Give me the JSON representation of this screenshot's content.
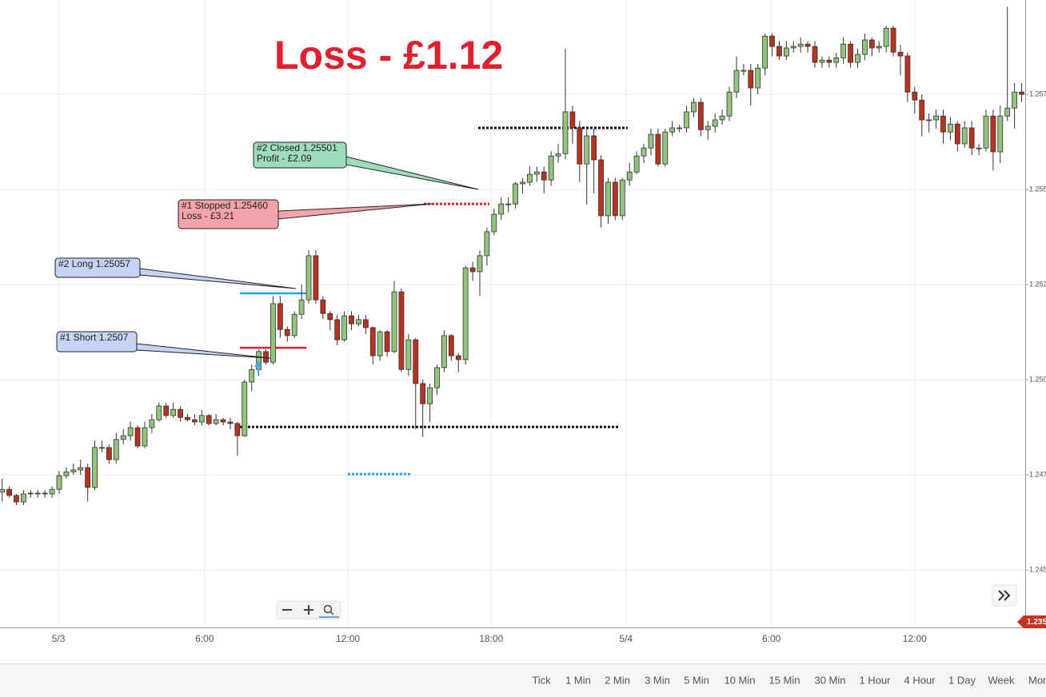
{
  "chart_data": {
    "type": "candlestick",
    "title": "Loss - £1.12",
    "title_color": "#e0202e",
    "up_color": "#93c47d",
    "down_color": "#b83221",
    "grid": true,
    "xlim": [
      -0.3,
      143.5
    ],
    "ylim": [
      1.24349,
      1.25998
    ],
    "xticks": [
      {
        "value": 7.9,
        "label": "5/3"
      },
      {
        "value": 28.4,
        "label": "6:00"
      },
      {
        "value": 48.5,
        "label": "12:00"
      },
      {
        "value": 68.6,
        "label": "18:00"
      },
      {
        "value": 87.5,
        "label": "5/4"
      },
      {
        "value": 107.9,
        "label": "6:00"
      },
      {
        "value": 128.0,
        "label": "12:00"
      }
    ],
    "yticks": [
      {
        "value": 1.2575,
        "label": "1.257"
      },
      {
        "value": 1.255,
        "label": "1.255"
      },
      {
        "value": 1.2525,
        "label": "1.252"
      },
      {
        "value": 1.25,
        "label": "1.250"
      },
      {
        "value": 1.2475,
        "label": "1.247"
      },
      {
        "value": 1.245,
        "label": "1.245"
      }
    ],
    "open": [
      1.24705,
      1.24712,
      1.24696,
      1.24679,
      1.247,
      1.24702,
      1.24702,
      1.247,
      1.24712,
      1.24748,
      1.24758,
      1.24763,
      1.24769,
      1.24717,
      1.24822,
      1.24822,
      1.2479,
      1.24843,
      1.24853,
      1.24874,
      1.24826,
      1.24874,
      1.24895,
      1.24931,
      1.24906,
      1.24922,
      1.24901,
      1.24895,
      1.24889,
      1.24906,
      1.24885,
      1.24895,
      1.24889,
      1.24885,
      1.24853,
      1.24994,
      1.25027,
      1.25074,
      1.25046,
      1.252,
      1.25132,
      1.25116,
      1.25172,
      1.2521,
      1.25326,
      1.2521,
      1.25174,
      1.25158,
      1.25105,
      1.25168,
      1.25147,
      1.25158,
      1.25137,
      1.25063,
      1.25126,
      1.25074,
      1.25231,
      1.25027,
      1.25105,
      1.2499,
      1.24937,
      1.24979,
      1.25032,
      1.25116,
      1.25063,
      1.25053,
      1.25294,
      1.25284,
      1.25326,
      1.25389,
      1.25435,
      1.25462,
      1.25462,
      1.25515,
      1.25519,
      1.2554,
      1.25546,
      1.25525,
      1.25588,
      1.25594,
      1.25704,
      1.25662,
      1.25567,
      1.25641,
      1.25578,
      1.25431,
      1.25519,
      1.25431,
      1.25525,
      1.25546,
      1.25588,
      1.25609,
      1.25645,
      1.25567,
      1.25651,
      1.25662,
      1.25662,
      1.25704,
      1.25729,
      1.25657,
      1.25666,
      1.25683,
      1.25693,
      1.25756,
      1.25813,
      1.25813,
      1.25767,
      1.25819,
      1.25903,
      1.25876,
      1.25851,
      1.25872,
      1.25876,
      1.25882,
      1.25876,
      1.25834,
      1.2584,
      1.25834,
      1.25846,
      1.25882,
      1.25834,
      1.25855,
      1.25893,
      1.25872,
      1.25876,
      1.25924,
      1.25861,
      1.25851,
      1.25756,
      1.25735,
      1.25683,
      1.25683,
      1.25693,
      1.25651,
      1.25672,
      1.2562,
      1.25662,
      1.25609,
      1.25609,
      1.25693,
      1.25599,
      1.25693,
      1.25714,
      1.25756
    ],
    "high": [
      1.2474,
      1.2472,
      1.247,
      1.2471,
      1.2471,
      1.2471,
      1.2471,
      1.2472,
      1.2476,
      1.2477,
      1.2478,
      1.2479,
      1.2478,
      1.2484,
      1.2484,
      1.2483,
      1.2486,
      1.2487,
      1.2489,
      1.2488,
      1.2489,
      1.2491,
      1.2494,
      1.2494,
      1.2494,
      1.2493,
      1.2491,
      1.2491,
      1.2492,
      1.2491,
      1.2491,
      1.249,
      1.249,
      1.2489,
      1.25,
      1.2504,
      1.2508,
      1.2508,
      1.2522,
      1.2522,
      1.2514,
      1.2518,
      1.2525,
      1.2534,
      1.2534,
      1.2522,
      1.2518,
      1.2517,
      1.2518,
      1.2518,
      1.2517,
      1.2517,
      1.2514,
      1.2513,
      1.2513,
      1.2526,
      1.2524,
      1.2512,
      1.2511,
      1.25,
      1.2499,
      1.2504,
      1.2513,
      1.2512,
      1.2507,
      1.253,
      1.2531,
      1.2534,
      1.254,
      1.2545,
      1.2548,
      1.2548,
      1.2552,
      1.2553,
      1.2556,
      1.2556,
      1.2556,
      1.256,
      1.2562,
      1.2587,
      1.2572,
      1.2568,
      1.2566,
      1.2566,
      1.2559,
      1.2553,
      1.2553,
      1.2553,
      1.2557,
      1.256,
      1.2562,
      1.2566,
      1.2566,
      1.2566,
      1.2568,
      1.2567,
      1.2572,
      1.2574,
      1.2574,
      1.2568,
      1.257,
      1.2571,
      1.2577,
      1.2585,
      1.2583,
      1.2583,
      1.2583,
      1.2591,
      1.2591,
      1.2589,
      1.2589,
      1.2589,
      1.259,
      1.2589,
      1.2589,
      1.2585,
      1.2585,
      1.2586,
      1.259,
      1.2589,
      1.2587,
      1.2591,
      1.259,
      1.2589,
      1.2593,
      1.2593,
      1.2588,
      1.2586,
      1.2577,
      1.2575,
      1.257,
      1.2571,
      1.2571,
      1.2569,
      1.2568,
      1.2568,
      1.2568,
      1.2562,
      1.2571,
      1.2571,
      1.2572,
      1.2598,
      1.2578,
      1.2578
    ],
    "low": [
      1.2468,
      1.2469,
      1.2467,
      1.2467,
      1.2469,
      1.2469,
      1.2469,
      1.2469,
      1.247,
      1.2474,
      1.2475,
      1.2475,
      1.2468,
      1.2471,
      1.2481,
      1.2478,
      1.2478,
      1.2483,
      1.2484,
      1.2482,
      1.2482,
      1.2486,
      1.2489,
      1.249,
      1.249,
      1.2489,
      1.2489,
      1.2488,
      1.2488,
      1.2488,
      1.2488,
      1.2488,
      1.2487,
      1.248,
      1.2485,
      1.2497,
      1.2501,
      1.2504,
      1.2504,
      1.2511,
      1.251,
      1.2511,
      1.2516,
      1.252,
      1.252,
      1.2516,
      1.2513,
      1.2509,
      1.251,
      1.2513,
      1.2514,
      1.2512,
      1.2504,
      1.2505,
      1.2506,
      1.2507,
      1.2502,
      1.2501,
      1.2487,
      1.2485,
      1.2489,
      1.2496,
      1.2502,
      1.2505,
      1.2502,
      1.2504,
      1.2526,
      1.2522,
      1.253,
      1.2538,
      1.2542,
      1.2544,
      1.2545,
      1.2549,
      1.2551,
      1.2552,
      1.2549,
      1.2551,
      1.2557,
      1.2558,
      1.2562,
      1.2552,
      1.2546,
      1.2549,
      1.254,
      1.2541,
      1.2542,
      1.2542,
      1.2551,
      1.2554,
      1.2557,
      1.2559,
      1.2556,
      1.2556,
      1.2564,
      1.2565,
      1.2565,
      1.2569,
      1.2564,
      1.2563,
      1.2565,
      1.2567,
      1.2568,
      1.2574,
      1.258,
      1.2572,
      1.2575,
      1.258,
      1.2585,
      1.2584,
      1.2584,
      1.2586,
      1.2586,
      1.2586,
      1.2582,
      1.2582,
      1.2582,
      1.2582,
      1.2583,
      1.2582,
      1.2582,
      1.2584,
      1.2585,
      1.2586,
      1.2586,
      1.2585,
      1.258,
      1.2573,
      1.257,
      1.2564,
      1.2565,
      1.2566,
      1.2562,
      1.2563,
      1.256,
      1.2561,
      1.2559,
      1.2559,
      1.256,
      1.2555,
      1.2557,
      1.2568,
      1.2566,
      1.2573
    ],
    "close": [
      1.24712,
      1.24696,
      1.24679,
      1.247,
      1.24702,
      1.24702,
      1.247,
      1.24712,
      1.24748,
      1.24758,
      1.24763,
      1.24769,
      1.24717,
      1.24822,
      1.24822,
      1.2479,
      1.24843,
      1.24853,
      1.24874,
      1.24826,
      1.24874,
      1.24895,
      1.24931,
      1.24906,
      1.24922,
      1.24901,
      1.24895,
      1.24889,
      1.24906,
      1.24885,
      1.24895,
      1.24889,
      1.24885,
      1.24853,
      1.24994,
      1.25027,
      1.25074,
      1.25046,
      1.252,
      1.25132,
      1.25116,
      1.25172,
      1.2521,
      1.25326,
      1.2521,
      1.25174,
      1.25158,
      1.25105,
      1.25168,
      1.25147,
      1.25158,
      1.25137,
      1.25063,
      1.25126,
      1.25074,
      1.25231,
      1.25027,
      1.25105,
      1.2499,
      1.24937,
      1.24979,
      1.25032,
      1.25116,
      1.25063,
      1.25053,
      1.25294,
      1.25284,
      1.25326,
      1.25389,
      1.25435,
      1.25462,
      1.25462,
      1.25515,
      1.25519,
      1.2554,
      1.25546,
      1.25525,
      1.25588,
      1.25594,
      1.25704,
      1.25662,
      1.25567,
      1.25641,
      1.25578,
      1.25431,
      1.25519,
      1.25431,
      1.25525,
      1.25546,
      1.25588,
      1.25609,
      1.25645,
      1.25567,
      1.25651,
      1.25662,
      1.25662,
      1.25704,
      1.25729,
      1.25657,
      1.25666,
      1.25683,
      1.25693,
      1.25756,
      1.25813,
      1.25813,
      1.25767,
      1.25819,
      1.25903,
      1.25876,
      1.25851,
      1.25872,
      1.25876,
      1.25882,
      1.25876,
      1.25834,
      1.2584,
      1.25834,
      1.25846,
      1.25882,
      1.25834,
      1.25855,
      1.25893,
      1.25872,
      1.25876,
      1.25924,
      1.25861,
      1.25851,
      1.25756,
      1.25735,
      1.25683,
      1.25683,
      1.25693,
      1.25651,
      1.25672,
      1.2562,
      1.25662,
      1.25609,
      1.25609,
      1.25693,
      1.25599,
      1.25693,
      1.25714,
      1.25756,
      1.2575
    ],
    "levels": [
      {
        "value": 1.24876,
        "color": "#111111",
        "style": "dotted"
      },
      {
        "value": 1.25662,
        "color": "#111111",
        "style": "dotted"
      },
      {
        "value": 1.25462,
        "color": "#e0202e",
        "style": "dotted"
      },
      {
        "value": 1.24752,
        "color": "#1ea7e0",
        "style": "dotted"
      },
      {
        "value": 1.25227,
        "color": "#1ea7e0",
        "style": "solid"
      },
      {
        "value": 1.25084,
        "color": "#e0202e",
        "style": "solid"
      }
    ],
    "annotations": [
      {
        "lines": [
          "#2 Closed 1.25501",
          "Profit - £2.09"
        ],
        "color": "#9ddcbd"
      },
      {
        "lines": [
          "#1 Stopped 1.25460",
          "Loss - £3.21"
        ],
        "color": "#f4a4a8"
      },
      {
        "lines": [
          "#2 Long 1.25057"
        ],
        "color": "#c5d3f4"
      },
      {
        "lines": [
          "#1 Short 1.2507"
        ],
        "color": "#c5d3f4"
      }
    ],
    "price_tag": "1.235",
    "price_tag_color": "#c8321e"
  },
  "timeframes": [
    "Tick",
    "1 Min",
    "2 Min",
    "3 Min",
    "5 Min",
    "10 Min",
    "15 Min",
    "30 Min",
    "1 Hour",
    "4 Hour",
    "1 Day",
    "Week",
    "Mon"
  ]
}
